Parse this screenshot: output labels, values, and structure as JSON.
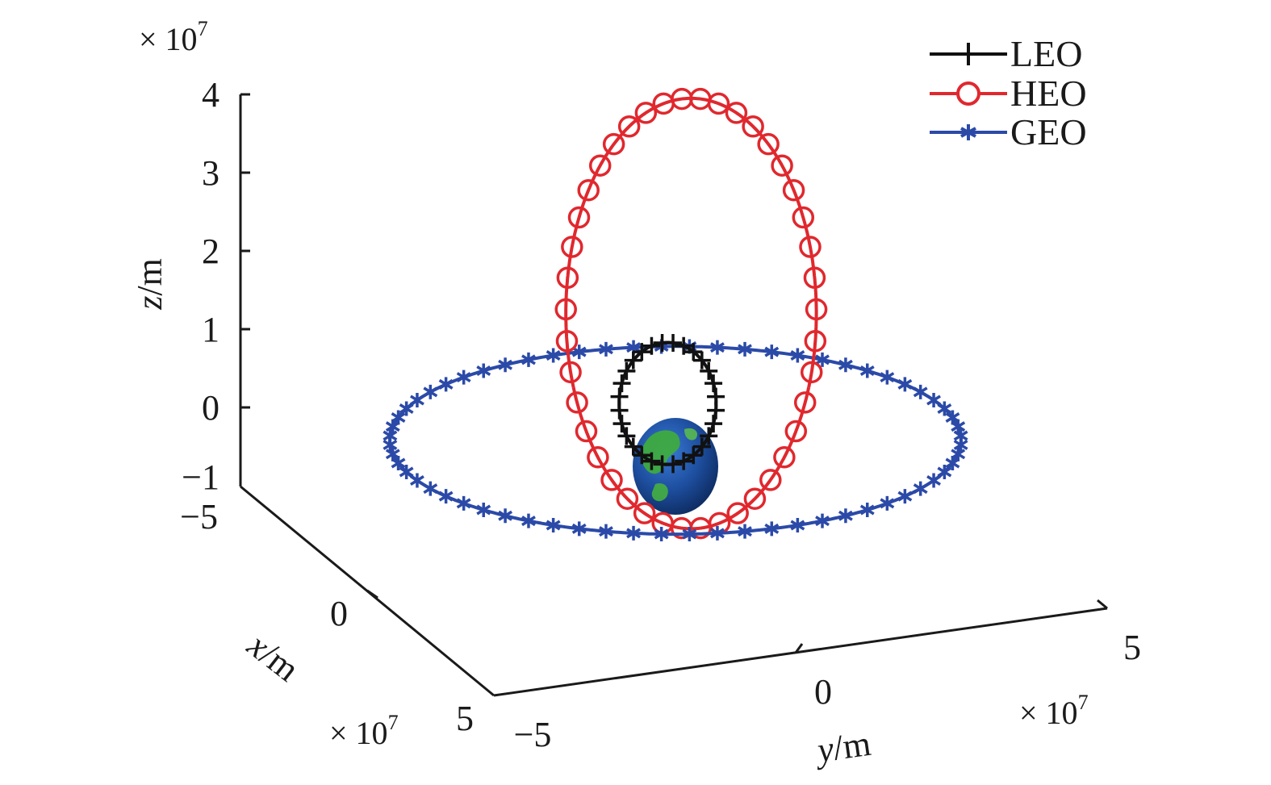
{
  "chart_data": {
    "type": "line",
    "dimensions": "3d",
    "axes": {
      "x": {
        "label_var": "x",
        "label_unit": "/m",
        "ticks": [
          "−5",
          "0",
          "5"
        ],
        "exponent_text": "× 10",
        "exponent_power": "7",
        "range": [
          -5,
          5
        ]
      },
      "y": {
        "label_var": "y",
        "label_unit": "/m",
        "ticks": [
          "−5",
          "0",
          "5"
        ],
        "exponent_text": "× 10",
        "exponent_power": "7",
        "range": [
          -5,
          5
        ]
      },
      "z": {
        "label_var": "z",
        "label_unit": "/m",
        "ticks": [
          "−1",
          "0",
          "1",
          "2",
          "3",
          "4"
        ],
        "exponent_text": "× 10",
        "exponent_power": "7",
        "range": [
          -1,
          4
        ]
      }
    },
    "legend_position": "top-right",
    "grid": false,
    "central_body": {
      "type": "earth-sphere"
    },
    "series": [
      {
        "name": "LEO",
        "color": "#111111",
        "marker": "plus",
        "orbit_ellipse": {
          "center": [
            -0.1,
            0.05
          ],
          "rx": 0.62,
          "ry": 0.78
        }
      },
      {
        "name": "HEO",
        "color": "#e0282e",
        "marker": "circle",
        "orbit_ellipse": {
          "center": [
            0.2,
            1.2
          ],
          "rx": 1.6,
          "ry": 2.75
        }
      },
      {
        "name": "GEO",
        "color": "#2b4aa8",
        "marker": "asterisk",
        "orbit_ellipse": {
          "center": [
            0.0,
            -0.42
          ],
          "rx": 3.65,
          "ry": 1.2
        }
      }
    ]
  }
}
